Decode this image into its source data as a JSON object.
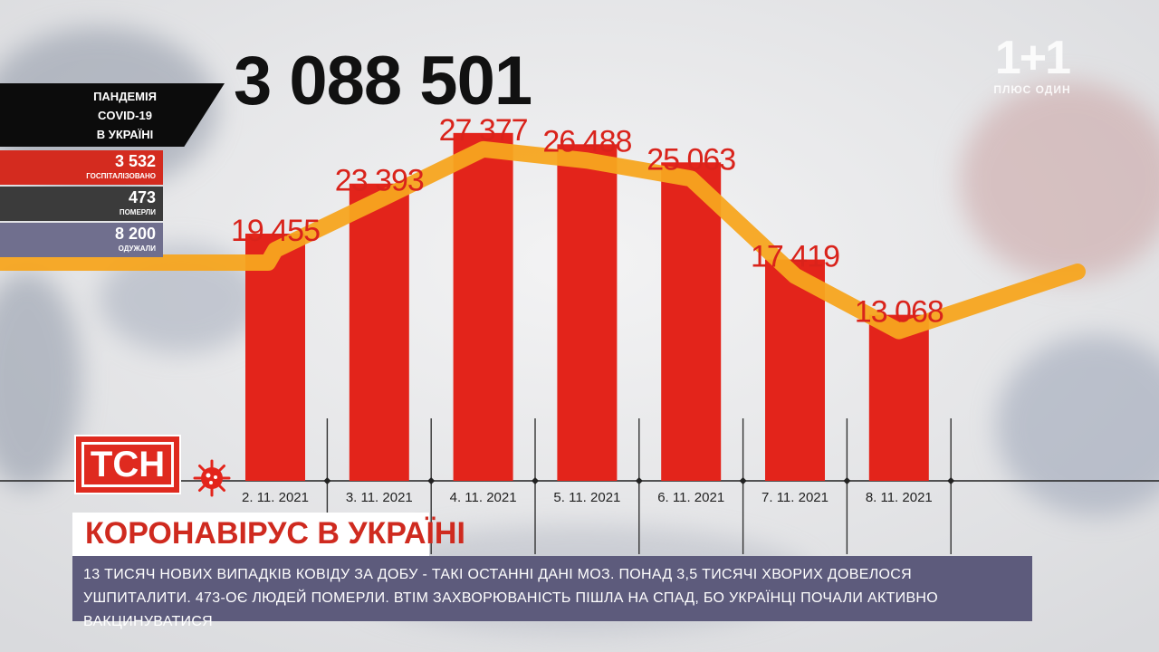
{
  "total_cases": "3 088 501",
  "panel": {
    "title_line1": "ПАНДЕМІЯ",
    "title_line2": "COVID-19",
    "title_line3": "В УКРАЇНІ",
    "hospitalized_value": "3 532",
    "hospitalized_label": "ГОСПІТАЛІЗОВАНО",
    "deaths_value": "473",
    "deaths_label": "ПОМЕРЛИ",
    "recovered_value": "8 200",
    "recovered_label": "ОДУЖАЛИ"
  },
  "channel_logo": {
    "mark": "1+1",
    "tagline": "ПЛЮС ОДИН"
  },
  "tsn_logo": "ТСН",
  "headline": "КОРОНАВІРУС В УКРАЇНІ",
  "ticker": "13 ТИСЯЧ НОВИХ ВИПАДКІВ КОВІДУ ЗА ДОБУ - ТАКІ ОСТАННІ ДАНІ МОЗ. ПОНАД 3,5 ТИСЯЧІ ХВОРИХ ДОВЕЛОСЯ УШПИТАЛИТИ. 473-ОЄ ЛЮДЕЙ ПОМЕРЛИ. ВТІМ ЗАХВОРЮВАНІСТЬ ПІШЛА НА СПАД, БО УКРАЇНЦІ ПОЧАЛИ АКТИВНО ВАКЦИНУВАТИСЯ",
  "colors": {
    "bar": "#e3241b",
    "trend": "#f7a51f",
    "accent": "#d42b1f",
    "ticker_bg": "#5d5b7c"
  },
  "icons": {
    "virus": "virus-icon"
  },
  "chart_data": {
    "type": "bar",
    "categories": [
      "2. 11. 2021",
      "3. 11. 2021",
      "4. 11. 2021",
      "5. 11. 2021",
      "6. 11. 2021",
      "7. 11. 2021",
      "8. 11. 2021"
    ],
    "values": [
      19455,
      23393,
      27377,
      26488,
      25063,
      17419,
      13068
    ],
    "value_labels": [
      "19 455",
      "23 393",
      "27 377",
      "26 488",
      "25 063",
      "17 419",
      "13 068"
    ],
    "title": "",
    "xlabel": "",
    "ylabel": "",
    "ylim": [
      0,
      31000
    ],
    "grid": false,
    "legend": "none",
    "overlay": "trend-line"
  }
}
